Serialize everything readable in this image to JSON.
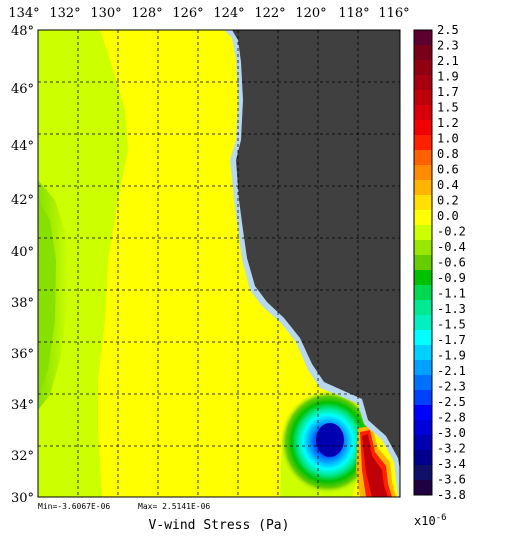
{
  "map": {
    "title": "V-wind Stress (Pa)",
    "min_label": "Min=-3.6067E-06",
    "max_label": "Max= 2.5141E-06",
    "lon_ticks": [
      "134°",
      "132°",
      "130°",
      "128°",
      "126°",
      "124°",
      "122°",
      "120°",
      "118°",
      "116°"
    ],
    "lat_ticks": [
      "48°",
      "46°",
      "44°",
      "42°",
      "40°",
      "38°",
      "36°",
      "34°",
      "32°",
      "30°"
    ],
    "land_color": "#404040",
    "coast_color": "#b8d8f0"
  },
  "colorbar": {
    "labels": [
      "2.5",
      "2.3",
      "2.1",
      "1.9",
      "1.7",
      "1.5",
      "1.2",
      "1.0",
      "0.8",
      "0.6",
      "0.4",
      "0.2",
      "0.0",
      "-0.2",
      "-0.4",
      "-0.6",
      "-0.9",
      "-1.1",
      "-1.3",
      "-1.5",
      "-1.7",
      "-1.9",
      "-2.1",
      "-2.3",
      "-2.5",
      "-2.8",
      "-3.0",
      "-3.2",
      "-3.4",
      "-3.6",
      "-3.8"
    ],
    "colors": [
      "#5c0030",
      "#780018",
      "#900010",
      "#a80010",
      "#c00008",
      "#d80008",
      "#f00000",
      "#ff2000",
      "#ff6000",
      "#ff8c00",
      "#ffb400",
      "#ffe000",
      "#ffff00",
      "#ccff00",
      "#99e600",
      "#66cc00",
      "#00c000",
      "#00d850",
      "#00e890",
      "#00f0c0",
      "#00ffff",
      "#00d0ff",
      "#00a0ff",
      "#0070ff",
      "#0040ff",
      "#0000ff",
      "#0000d8",
      "#0000b0",
      "#00008c",
      "#101068",
      "#200040"
    ],
    "exponent": "x10",
    "exponent_power": "-6"
  }
}
